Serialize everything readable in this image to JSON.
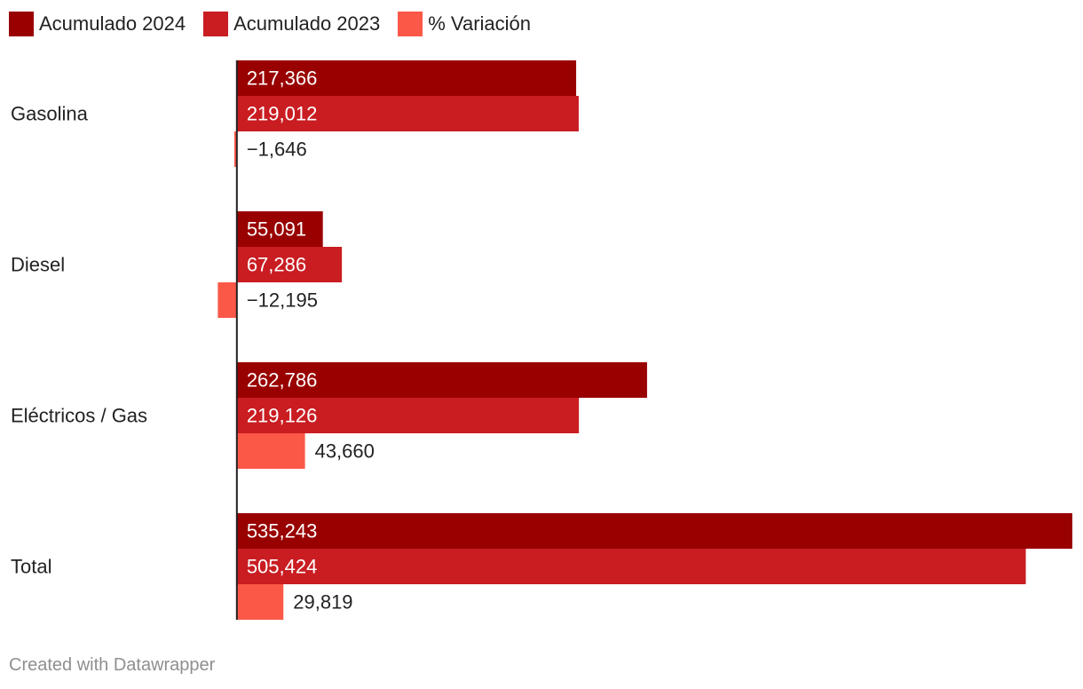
{
  "chart_data": {
    "type": "bar",
    "orientation": "horizontal",
    "categories": [
      "Gasolina",
      "Diesel",
      "Eléctricos / Gas",
      "Total"
    ],
    "series": [
      {
        "name": "Acumulado 2024",
        "color": "#990000",
        "values": [
          217366,
          55091,
          262786,
          535243
        ]
      },
      {
        "name": "Acumulado 2023",
        "color": "#c91d22",
        "values": [
          219012,
          67286,
          219126,
          505424
        ]
      },
      {
        "name": "% Variación",
        "color": "#fc5848",
        "values": [
          -1646,
          -12195,
          43660,
          29819
        ]
      }
    ],
    "value_labels": [
      [
        "217,366",
        "55,091",
        "262,786",
        "535,243"
      ],
      [
        "219,012",
        "67,286",
        "219,126",
        "505,424"
      ],
      [
        "−1,646",
        "−12,195",
        "43,660",
        "29,819"
      ]
    ],
    "xlim": [
      -38000,
      535243
    ],
    "legend_position": "top-left",
    "grid": false
  },
  "footer": "Created with Datawrapper"
}
